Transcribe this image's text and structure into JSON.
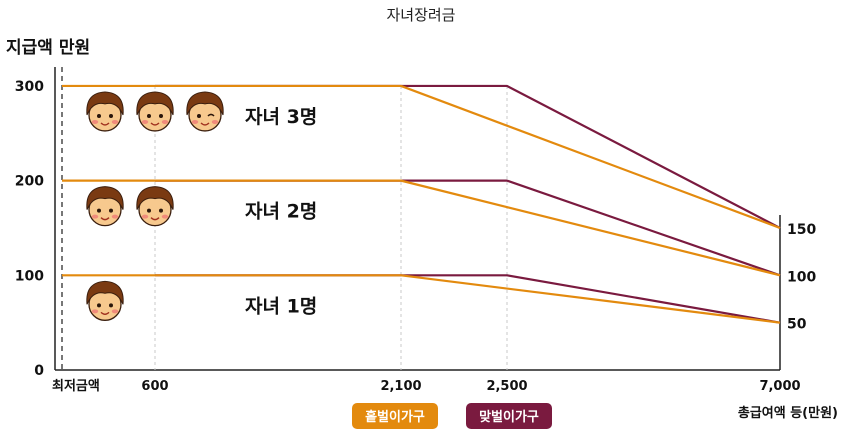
{
  "chart_data": {
    "type": "line",
    "title": "자녀장려금",
    "ylabel": "지급액 만원",
    "xlabel": "총급여액 등(만원)",
    "ylim": [
      0,
      320
    ],
    "y_ticks": [
      "0",
      "100",
      "200",
      "300"
    ],
    "y_tick_values": [
      0,
      100,
      200,
      300
    ],
    "right_ticks": [
      "150",
      "100",
      "50"
    ],
    "right_tick_values": [
      150,
      100,
      50
    ],
    "x_ticks": [
      {
        "label": "최저금액",
        "value": 0
      },
      {
        "label": "600",
        "value": 600
      },
      {
        "label": "2,100",
        "value": 2100
      },
      {
        "label": "2,500",
        "value": 2500
      },
      {
        "label": "7,000",
        "value": 7000
      }
    ],
    "xlim": [
      -60,
      7000
    ],
    "series": [
      {
        "name": "홑벌이가구",
        "color": "#e38a0e",
        "lines": [
          {
            "group": "자녀 3명",
            "x": [
              0,
              2100,
              7000
            ],
            "y": [
              300,
              300,
              150
            ]
          },
          {
            "group": "자녀 2명",
            "x": [
              0,
              2100,
              7000
            ],
            "y": [
              200,
              200,
              100
            ]
          },
          {
            "group": "자녀 1명",
            "x": [
              0,
              2100,
              7000
            ],
            "y": [
              100,
              100,
              50
            ]
          }
        ]
      },
      {
        "name": "맞벌이가구",
        "color": "#7a1a3f",
        "lines": [
          {
            "group": "자녀 3명",
            "x": [
              600,
              2500,
              7000
            ],
            "y": [
              300,
              300,
              150
            ]
          },
          {
            "group": "자녀 2명",
            "x": [
              600,
              2500,
              7000
            ],
            "y": [
              200,
              200,
              100
            ]
          },
          {
            "group": "자녀 1명",
            "x": [
              600,
              2500,
              7000
            ],
            "y": [
              100,
              100,
              50
            ]
          }
        ]
      }
    ],
    "groups": [
      {
        "label": "자녀 3명",
        "children": 3,
        "y": 300
      },
      {
        "label": "자녀 2명",
        "children": 2,
        "y": 200
      },
      {
        "label": "자녀 1명",
        "children": 1,
        "y": 100
      }
    ],
    "legend": [
      {
        "label": "홑벌이가구",
        "color": "#e38a0e"
      },
      {
        "label": "맞벌이가구",
        "color": "#7a1a3f"
      }
    ],
    "legend_placement": "bottom-center",
    "grid": false
  }
}
